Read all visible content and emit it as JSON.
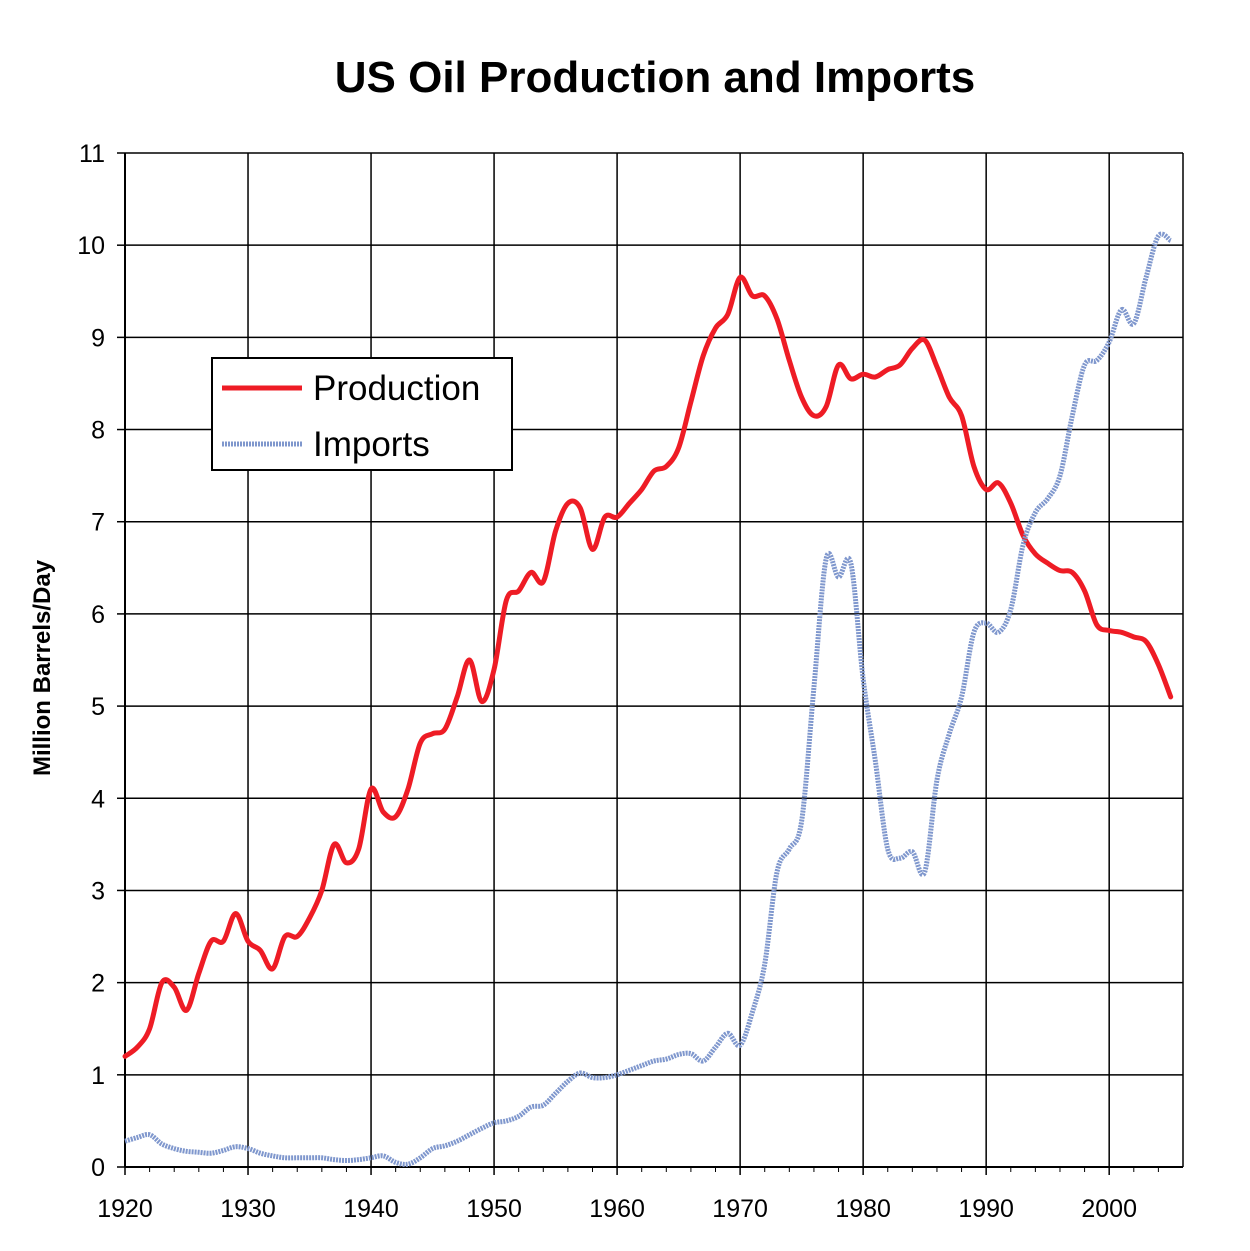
{
  "chart_data": {
    "type": "line",
    "title": "US Oil Production and Imports",
    "xlabel": "",
    "ylabel": "Million Barrels/Day",
    "xlim": [
      1920,
      2006
    ],
    "ylim": [
      0,
      11
    ],
    "x_ticks": [
      "1920",
      "1930",
      "1940",
      "1950",
      "1960",
      "1970",
      "1980",
      "1990",
      "2000"
    ],
    "y_ticks": [
      "0",
      "1",
      "2",
      "3",
      "4",
      "5",
      "6",
      "7",
      "8",
      "9",
      "10",
      "11"
    ],
    "grid": true,
    "legend_position": "upper-left",
    "series": [
      {
        "name": "Production",
        "color": "#ee1c25",
        "x": [
          1920,
          1921,
          1922,
          1923,
          1924,
          1925,
          1926,
          1927,
          1928,
          1929,
          1930,
          1931,
          1932,
          1933,
          1934,
          1935,
          1936,
          1937,
          1938,
          1939,
          1940,
          1941,
          1942,
          1943,
          1944,
          1945,
          1946,
          1947,
          1948,
          1949,
          1950,
          1951,
          1952,
          1953,
          1954,
          1955,
          1956,
          1957,
          1958,
          1959,
          1960,
          1961,
          1962,
          1963,
          1964,
          1965,
          1966,
          1967,
          1968,
          1969,
          1970,
          1971,
          1972,
          1973,
          1974,
          1975,
          1976,
          1977,
          1978,
          1979,
          1980,
          1981,
          1982,
          1983,
          1984,
          1985,
          1986,
          1987,
          1988,
          1989,
          1990,
          1991,
          1992,
          1993,
          1994,
          1995,
          1996,
          1997,
          1998,
          1999,
          2000,
          2001,
          2002,
          2003,
          2004,
          2005
        ],
        "y": [
          1.2,
          1.3,
          1.5,
          2.0,
          1.95,
          1.7,
          2.1,
          2.45,
          2.45,
          2.75,
          2.45,
          2.35,
          2.15,
          2.5,
          2.5,
          2.7,
          3.0,
          3.5,
          3.3,
          3.45,
          4.1,
          3.85,
          3.8,
          4.1,
          4.6,
          4.7,
          4.75,
          5.1,
          5.5,
          5.05,
          5.4,
          6.15,
          6.25,
          6.45,
          6.35,
          6.9,
          7.2,
          7.15,
          6.7,
          7.05,
          7.05,
          7.2,
          7.35,
          7.55,
          7.6,
          7.8,
          8.3,
          8.8,
          9.1,
          9.25,
          9.65,
          9.45,
          9.45,
          9.2,
          8.75,
          8.35,
          8.15,
          8.25,
          8.7,
          8.55,
          8.6,
          8.57,
          8.65,
          8.7,
          8.88,
          8.97,
          8.68,
          8.35,
          8.15,
          7.6,
          7.35,
          7.42,
          7.2,
          6.85,
          6.65,
          6.55,
          6.47,
          6.45,
          6.25,
          5.88,
          5.82,
          5.8,
          5.75,
          5.7,
          5.45,
          5.1
        ]
      },
      {
        "name": "Imports",
        "color": "#7f97cd",
        "x": [
          1920,
          1921,
          1922,
          1923,
          1924,
          1925,
          1926,
          1927,
          1928,
          1929,
          1930,
          1931,
          1932,
          1933,
          1934,
          1935,
          1936,
          1937,
          1938,
          1939,
          1940,
          1941,
          1942,
          1943,
          1944,
          1945,
          1946,
          1947,
          1948,
          1949,
          1950,
          1951,
          1952,
          1953,
          1954,
          1955,
          1956,
          1957,
          1958,
          1959,
          1960,
          1961,
          1962,
          1963,
          1964,
          1965,
          1966,
          1967,
          1968,
          1969,
          1970,
          1971,
          1972,
          1973,
          1974,
          1975,
          1976,
          1977,
          1978,
          1979,
          1980,
          1981,
          1982,
          1983,
          1984,
          1985,
          1986,
          1987,
          1988,
          1989,
          1990,
          1991,
          1992,
          1993,
          1994,
          1995,
          1996,
          1997,
          1998,
          1999,
          2000,
          2001,
          2002,
          2003,
          2004,
          2005
        ],
        "y": [
          0.28,
          0.32,
          0.35,
          0.25,
          0.2,
          0.17,
          0.16,
          0.15,
          0.18,
          0.22,
          0.2,
          0.15,
          0.12,
          0.1,
          0.1,
          0.1,
          0.1,
          0.08,
          0.07,
          0.08,
          0.1,
          0.12,
          0.05,
          0.03,
          0.1,
          0.2,
          0.23,
          0.28,
          0.35,
          0.42,
          0.48,
          0.5,
          0.55,
          0.65,
          0.67,
          0.8,
          0.93,
          1.02,
          0.97,
          0.97,
          1.0,
          1.05,
          1.1,
          1.15,
          1.17,
          1.22,
          1.23,
          1.15,
          1.3,
          1.45,
          1.32,
          1.68,
          2.2,
          3.2,
          3.45,
          3.75,
          5.2,
          6.6,
          6.4,
          6.55,
          5.3,
          4.4,
          3.45,
          3.35,
          3.42,
          3.2,
          4.2,
          4.7,
          5.1,
          5.8,
          5.9,
          5.8,
          6.05,
          6.75,
          7.1,
          7.25,
          7.5,
          8.15,
          8.7,
          8.75,
          8.95,
          9.3,
          9.15,
          9.65,
          10.1,
          10.05
        ]
      }
    ]
  }
}
